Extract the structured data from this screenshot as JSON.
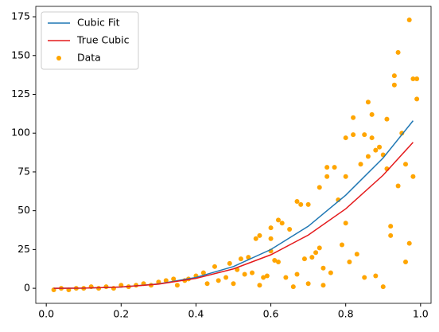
{
  "chart_data": {
    "type": "scatter-line",
    "xlim": [
      -0.028,
      1.028
    ],
    "ylim": [
      -9.7,
      181.7
    ],
    "xticks": [
      {
        "value": 0,
        "label": "0.0"
      },
      0.2,
      0.4,
      0.6,
      0.8,
      {
        "value": 1,
        "label": "1.0"
      }
    ],
    "yticks": [
      0,
      25,
      50,
      75,
      100,
      125,
      150,
      175
    ],
    "legend": "upper left",
    "series": [
      {
        "name": "Cubic Fit",
        "type": "line",
        "color": "#1f77b4",
        "x": [
          0.02,
          0.1,
          0.2,
          0.3,
          0.4,
          0.5,
          0.6,
          0.7,
          0.8,
          0.9,
          0.98
        ],
        "values": [
          0,
          0.1,
          0.8,
          2.8,
          7,
          14,
          25,
          40,
          60,
          84,
          108
        ]
      },
      {
        "name": "True Cubic",
        "type": "line",
        "color": "#e41a1c",
        "x": [
          0.02,
          0.1,
          0.2,
          0.3,
          0.4,
          0.5,
          0.6,
          0.7,
          0.8,
          0.9,
          0.98
        ],
        "values": [
          0,
          0.1,
          0.8,
          2.7,
          6.4,
          12.5,
          21.6,
          34.3,
          51.2,
          72.9,
          94.1
        ]
      },
      {
        "name": "Data",
        "type": "scatter",
        "color": "#ffa500",
        "x": [
          0.02,
          0.04,
          0.06,
          0.08,
          0.1,
          0.12,
          0.14,
          0.16,
          0.18,
          0.2,
          0.22,
          0.24,
          0.26,
          0.28,
          0.3,
          0.32,
          0.34,
          0.35,
          0.37,
          0.38,
          0.4,
          0.42,
          0.43,
          0.45,
          0.46,
          0.48,
          0.49,
          0.5,
          0.51,
          0.52,
          0.53,
          0.54,
          0.55,
          0.57,
          0.58,
          0.59,
          0.6,
          0.6,
          0.62,
          0.63,
          0.65,
          0.56,
          0.57,
          0.6,
          0.61,
          0.62,
          0.64,
          0.66,
          0.67,
          0.67,
          0.68,
          0.69,
          0.7,
          0.7,
          0.71,
          0.72,
          0.73,
          0.73,
          0.74,
          0.74,
          0.75,
          0.75,
          0.76,
          0.77,
          0.78,
          0.79,
          0.8,
          0.8,
          0.8,
          0.81,
          0.82,
          0.82,
          0.83,
          0.84,
          0.85,
          0.85,
          0.86,
          0.86,
          0.87,
          0.87,
          0.88,
          0.88,
          0.89,
          0.9,
          0.9,
          0.91,
          0.91,
          0.92,
          0.92,
          0.93,
          0.93,
          0.94,
          0.94,
          0.95,
          0.96,
          0.96,
          0.97,
          0.97,
          0.98,
          0.98,
          0.99,
          0.99
        ],
        "values": [
          -1,
          0,
          -1,
          0,
          0,
          1,
          0,
          1,
          0,
          2,
          1,
          2,
          3,
          2,
          4,
          5,
          6,
          2,
          5,
          6,
          8,
          10,
          3,
          14,
          5,
          7,
          16,
          3,
          12,
          19,
          9,
          20,
          10,
          2,
          7,
          8,
          32,
          39,
          44,
          42,
          38,
          32,
          34,
          24,
          18,
          17,
          7,
          1,
          9,
          56,
          54,
          19,
          54,
          3,
          20,
          23,
          26,
          65,
          2,
          13,
          78,
          72,
          10,
          78,
          57,
          28,
          97,
          42,
          72,
          17,
          99,
          110,
          22,
          80,
          99,
          7,
          120,
          85,
          112,
          97,
          89,
          8,
          91,
          1,
          86,
          77,
          109,
          40,
          34,
          131,
          137,
          152,
          66,
          100,
          80,
          17,
          173,
          29,
          135,
          72,
          122,
          135
        ]
      }
    ]
  }
}
